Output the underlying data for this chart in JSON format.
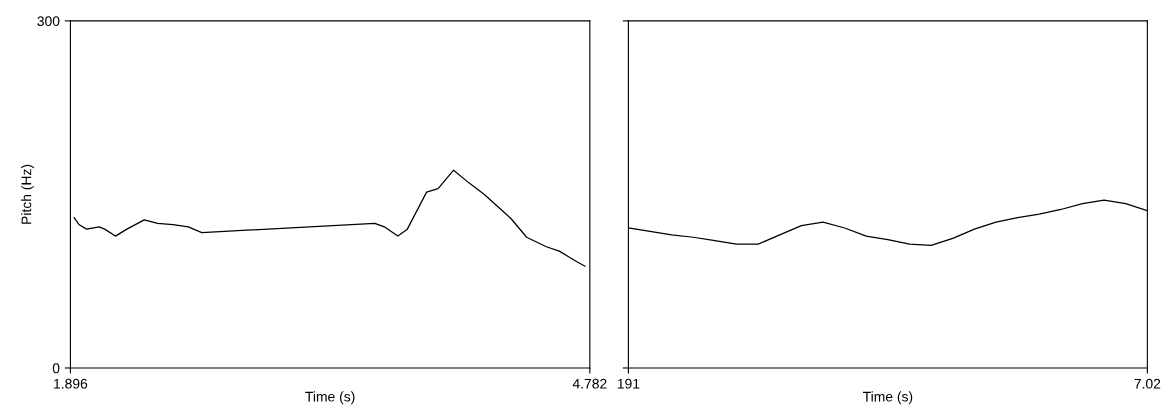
{
  "chart_data": [
    {
      "type": "line",
      "xlabel": "Time (s)",
      "ylabel": "Pitch (Hz)",
      "xlim": [
        1.896,
        4.782
      ],
      "xticks": [
        1.896,
        4.782
      ],
      "ylim": [
        0,
        300
      ],
      "yticks": [
        0,
        300
      ],
      "grid": false,
      "legend": false,
      "series": [
        {
          "color": "#000000",
          "x": [
            1.917,
            1.943,
            1.986,
            2.056,
            2.086,
            2.146,
            2.21,
            2.306,
            2.381,
            2.466,
            2.551,
            2.626,
            3.587,
            3.64,
            3.715,
            3.768,
            3.875,
            3.939,
            4.025,
            4.11,
            4.196,
            4.345,
            4.431,
            4.537,
            4.612,
            4.666,
            4.708,
            4.755
          ],
          "values": [
            130,
            124,
            120,
            122,
            120,
            114,
            120,
            128,
            125,
            124,
            122,
            117,
            125,
            122,
            114,
            120,
            152,
            155,
            171,
            160,
            150,
            129,
            113,
            105,
            101,
            96,
            92,
            88
          ]
        }
      ]
    },
    {
      "type": "line",
      "xlabel": "Time (s)",
      "categories": [
        "191",
        null,
        null,
        null,
        null,
        null,
        null,
        null,
        null,
        null,
        null,
        null,
        null,
        null,
        null,
        null,
        null,
        null,
        null,
        null,
        null,
        null,
        null,
        null,
        "7.02"
      ],
      "ylim": [
        0,
        300
      ],
      "yticks": [
        {
          "value": 0,
          "label": null
        },
        {
          "value": 300,
          "label": null
        }
      ],
      "tick_labels": "x",
      "grid": false,
      "legend": false,
      "series": [
        {
          "color": "#000000",
          "values": [
            121,
            118,
            115,
            113,
            110,
            107,
            107,
            115,
            123,
            126,
            121,
            114,
            111,
            107,
            106,
            112,
            120,
            126,
            130,
            133,
            137,
            142,
            145,
            142,
            136
          ]
        }
      ]
    }
  ]
}
